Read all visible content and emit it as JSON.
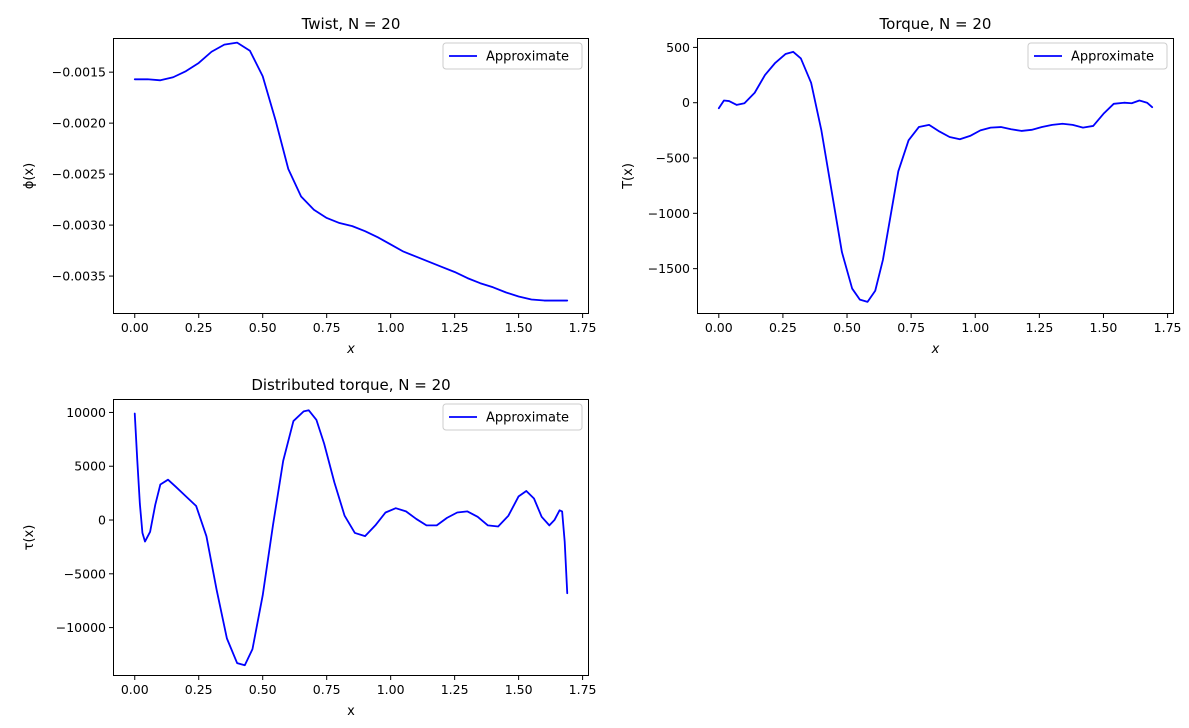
{
  "figure": {
    "background": "#ffffff"
  },
  "chart_data": [
    {
      "id": "twist",
      "type": "line",
      "title": "Twist, N = 20",
      "xlabel": "x",
      "ylabel": "ϕ(x)",
      "xlim": [
        -0.085,
        1.775
      ],
      "ylim": [
        -0.003872,
        -0.001165
      ],
      "xticks": [
        0.0,
        0.25,
        0.5,
        0.75,
        1.0,
        1.25,
        1.5,
        1.75
      ],
      "xtick_labels": [
        "0.00",
        "0.25",
        "0.50",
        "0.75",
        "1.00",
        "1.25",
        "1.50",
        "1.75"
      ],
      "yticks": [
        -0.0035,
        -0.003,
        -0.0025,
        -0.002,
        -0.0015
      ],
      "ytick_labels": [
        "−0.0035",
        "−0.0030",
        "−0.0025",
        "−0.0020",
        "−0.0015"
      ],
      "legend": {
        "position": "top-right",
        "entries": [
          "Approximate"
        ]
      },
      "series": [
        {
          "name": "Approximate",
          "color": "#0000ff",
          "x": [
            0.0,
            0.05,
            0.1,
            0.15,
            0.2,
            0.25,
            0.3,
            0.35,
            0.4,
            0.45,
            0.5,
            0.55,
            0.6,
            0.65,
            0.7,
            0.75,
            0.8,
            0.85,
            0.9,
            0.95,
            1.0,
            1.05,
            1.1,
            1.15,
            1.2,
            1.25,
            1.3,
            1.35,
            1.4,
            1.45,
            1.5,
            1.55,
            1.6,
            1.65,
            1.69
          ],
          "y": [
            -0.00157,
            -0.00157,
            -0.00158,
            -0.00155,
            -0.00149,
            -0.00141,
            -0.0013,
            -0.00123,
            -0.00121,
            -0.00129,
            -0.00154,
            -0.00197,
            -0.00245,
            -0.00272,
            -0.00285,
            -0.00293,
            -0.00298,
            -0.00301,
            -0.00306,
            -0.00312,
            -0.00319,
            -0.00326,
            -0.00331,
            -0.00336,
            -0.00341,
            -0.00346,
            -0.00352,
            -0.00357,
            -0.00361,
            -0.00366,
            -0.0037,
            -0.00373,
            -0.00374,
            -0.00374,
            -0.00374
          ]
        }
      ]
    },
    {
      "id": "torque",
      "type": "line",
      "title": "Torque, N = 20",
      "xlabel": "x",
      "ylabel": "T(x)",
      "xlim": [
        -0.085,
        1.775
      ],
      "ylim": [
        -1910,
        585
      ],
      "xticks": [
        0.0,
        0.25,
        0.5,
        0.75,
        1.0,
        1.25,
        1.5,
        1.75
      ],
      "xtick_labels": [
        "0.00",
        "0.25",
        "0.50",
        "0.75",
        "1.00",
        "1.25",
        "1.50",
        "1.75"
      ],
      "yticks": [
        -1500,
        -1000,
        -500,
        0,
        500
      ],
      "ytick_labels": [
        "−1500",
        "−1000",
        "−500",
        "0",
        "500"
      ],
      "legend": {
        "position": "top-right",
        "entries": [
          "Approximate"
        ]
      },
      "series": [
        {
          "name": "Approximate",
          "color": "#0000ff",
          "x": [
            0.0,
            0.02,
            0.04,
            0.07,
            0.1,
            0.14,
            0.18,
            0.22,
            0.26,
            0.29,
            0.32,
            0.36,
            0.4,
            0.44,
            0.48,
            0.52,
            0.55,
            0.58,
            0.61,
            0.64,
            0.67,
            0.7,
            0.74,
            0.78,
            0.82,
            0.86,
            0.9,
            0.94,
            0.98,
            1.02,
            1.06,
            1.1,
            1.14,
            1.18,
            1.22,
            1.26,
            1.3,
            1.34,
            1.38,
            1.42,
            1.46,
            1.5,
            1.54,
            1.58,
            1.61,
            1.64,
            1.67,
            1.69
          ],
          "y": [
            -50,
            20,
            15,
            -20,
            -5,
            90,
            250,
            360,
            440,
            460,
            400,
            180,
            -250,
            -800,
            -1350,
            -1680,
            -1780,
            -1800,
            -1700,
            -1420,
            -1020,
            -620,
            -340,
            -220,
            -200,
            -260,
            -310,
            -330,
            -300,
            -250,
            -225,
            -220,
            -240,
            -255,
            -245,
            -220,
            -200,
            -190,
            -200,
            -225,
            -210,
            -100,
            -10,
            0,
            -5,
            20,
            0,
            -40
          ]
        }
      ]
    },
    {
      "id": "distributed",
      "type": "line",
      "title": "Distributed torque, N = 20",
      "xlabel": "x",
      "ylabel": "τ(x)",
      "xlim": [
        -0.085,
        1.775
      ],
      "ylim": [
        -14500,
        11250
      ],
      "xticks": [
        0.0,
        0.25,
        0.5,
        0.75,
        1.0,
        1.25,
        1.5,
        1.75
      ],
      "xtick_labels": [
        "0.00",
        "0.25",
        "0.50",
        "0.75",
        "1.00",
        "1.25",
        "1.50",
        "1.75"
      ],
      "yticks": [
        -10000,
        -5000,
        0,
        5000,
        10000
      ],
      "ytick_labels": [
        "−10000",
        "−5000",
        "0",
        "5000",
        "10000"
      ],
      "legend": {
        "position": "top-right",
        "entries": [
          "Approximate"
        ]
      },
      "series": [
        {
          "name": "Approximate",
          "color": "#0000ff",
          "x": [
            0.0,
            0.01,
            0.02,
            0.03,
            0.04,
            0.06,
            0.08,
            0.1,
            0.13,
            0.16,
            0.2,
            0.24,
            0.28,
            0.32,
            0.36,
            0.4,
            0.43,
            0.46,
            0.5,
            0.54,
            0.58,
            0.62,
            0.66,
            0.68,
            0.71,
            0.74,
            0.78,
            0.82,
            0.86,
            0.9,
            0.94,
            0.98,
            1.02,
            1.06,
            1.1,
            1.14,
            1.18,
            1.22,
            1.26,
            1.3,
            1.34,
            1.38,
            1.42,
            1.46,
            1.5,
            1.53,
            1.56,
            1.59,
            1.62,
            1.64,
            1.66,
            1.67,
            1.68,
            1.69
          ],
          "y": [
            9900,
            5500,
            1500,
            -1200,
            -2000,
            -1100,
            1400,
            3300,
            3750,
            3100,
            2200,
            1300,
            -1500,
            -6500,
            -11000,
            -13300,
            -13500,
            -12000,
            -7000,
            -500,
            5500,
            9200,
            10100,
            10200,
            9300,
            7100,
            3500,
            400,
            -1200,
            -1500,
            -500,
            700,
            1100,
            800,
            100,
            -500,
            -500,
            200,
            700,
            800,
            300,
            -500,
            -600,
            400,
            2200,
            2700,
            2000,
            300,
            -500,
            0,
            900,
            800,
            -2000,
            -6800
          ]
        }
      ]
    }
  ]
}
